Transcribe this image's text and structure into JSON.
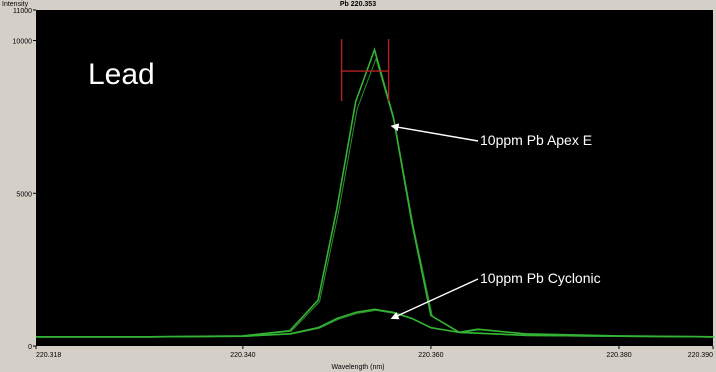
{
  "chart_data": {
    "type": "line",
    "title": "Pb 220.353",
    "ylabel": "Intensity",
    "xlabel": "Wavelength (nm)",
    "xlim": [
      220.318,
      220.39
    ],
    "ylim": [
      0,
      11000
    ],
    "x_ticks": [
      "220.318",
      "220.340",
      "220.360",
      "220.380",
      "220.390"
    ],
    "x_tick_values": [
      220.318,
      220.34,
      220.36,
      220.38,
      220.39
    ],
    "y_ticks": [
      "0",
      "5000",
      "10000",
      "11000"
    ],
    "y_tick_values": [
      0,
      5000,
      10000,
      11000
    ],
    "background": "#000000",
    "line_color": "#34b334",
    "marker_color": "#b42020",
    "grid": false,
    "annotation_big": "Lead",
    "series": [
      {
        "name": "10ppm Pb Apex E",
        "x": [
          220.318,
          220.33,
          220.34,
          220.345,
          220.348,
          220.35,
          220.352,
          220.354,
          220.356,
          220.358,
          220.36,
          220.363,
          220.37,
          220.38,
          220.39
        ],
        "y": [
          300,
          300,
          330,
          500,
          1500,
          4500,
          8000,
          9700,
          7500,
          4000,
          1000,
          450,
          350,
          320,
          300
        ]
      },
      {
        "name": "10ppm Pb Cyclonic",
        "x": [
          220.318,
          220.33,
          220.34,
          220.345,
          220.348,
          220.35,
          220.352,
          220.354,
          220.356,
          220.358,
          220.36,
          220.363,
          220.365,
          220.37,
          220.38,
          220.39
        ],
        "y": [
          300,
          300,
          320,
          400,
          600,
          900,
          1100,
          1200,
          1100,
          900,
          600,
          450,
          550,
          400,
          330,
          300
        ]
      }
    ],
    "annotations": [
      {
        "text": "10ppm Pb Apex E",
        "target_x": 220.3555,
        "target_y": 7200
      },
      {
        "text": "10ppm Pb Cyclonic",
        "target_x": 220.3555,
        "target_y": 900
      }
    ],
    "marker": {
      "x_left": 220.3505,
      "x_right": 220.3555,
      "y": 9000
    }
  }
}
